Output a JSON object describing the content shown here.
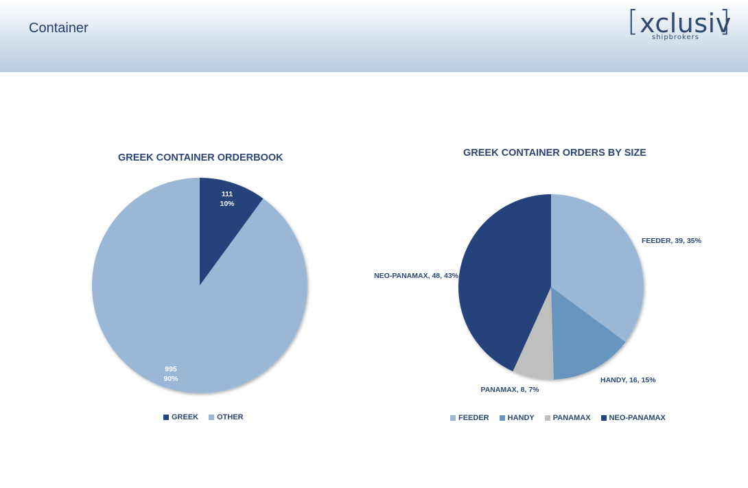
{
  "header": {
    "title": "Container",
    "logo_left_bracket": "[",
    "logo_word": "xclusiv",
    "logo_right_bracket": "]",
    "logo_tagline": "shipbrokers"
  },
  "colors": {
    "greek": "#25437a",
    "other": "#9ab8d6",
    "feeder": "#9ab8d6",
    "handy": "#6795c0",
    "panamax": "#bfbfbf",
    "neo_panamax": "#25437a",
    "title_text": "#2b4574"
  },
  "chart_data": [
    {
      "type": "pie",
      "title": "GREEK CONTAINER ORDERBOOK",
      "slices": [
        {
          "name": "GREEK",
          "value": 111,
          "percent": "10%",
          "label_value": "111",
          "label_percent": "10%"
        },
        {
          "name": "OTHER",
          "value": 995,
          "percent": "90%",
          "label_value": "995",
          "label_percent": "90%"
        }
      ],
      "legend": [
        "GREEK",
        "OTHER"
      ],
      "legend_position": "bottom"
    },
    {
      "type": "pie",
      "title": "GREEK CONTAINER ORDERS BY SIZE",
      "slices": [
        {
          "name": "FEEDER",
          "value": 39,
          "percent": "35%",
          "label": "FEEDER, 39, 35%"
        },
        {
          "name": "HANDY",
          "value": 16,
          "percent": "15%",
          "label": "HANDY, 16, 15%"
        },
        {
          "name": "PANAMAX",
          "value": 8,
          "percent": "7%",
          "label": "PANAMAX, 8, 7%"
        },
        {
          "name": "NEO-PANAMAX",
          "value": 48,
          "percent": "43%",
          "label": "NEO-PANAMAX, 48, 43%"
        }
      ],
      "legend": [
        "FEEDER",
        "HANDY",
        "PANAMAX",
        "NEO-PANAMAX"
      ],
      "legend_position": "bottom"
    }
  ]
}
